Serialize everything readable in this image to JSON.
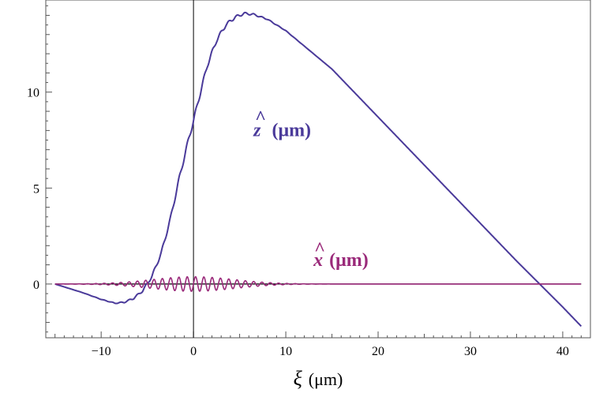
{
  "chart_data": {
    "type": "line",
    "title": "",
    "xlabel_symbol": "ξ",
    "xlabel_unit": "(μm)",
    "ylabel": "",
    "xlim": [
      -16,
      43
    ],
    "ylim": [
      -2.8,
      14.8
    ],
    "xticks": [
      -10,
      0,
      10,
      20,
      30,
      40
    ],
    "xtick_labels": [
      "−10",
      "0",
      "10",
      "20",
      "30",
      "40"
    ],
    "yticks": [
      0,
      5,
      10
    ],
    "ytick_labels": [
      "0",
      "5",
      "10"
    ],
    "grid": false,
    "colors": {
      "z": "#4a3a9a",
      "x": "#9a2a7a",
      "axis": "#000000"
    },
    "series": [
      {
        "name": "z (μm)",
        "label_text": "(μm)",
        "hat_symbol": "z",
        "x": [
          -15,
          -12,
          -10,
          -8.5,
          -7.5,
          -6.5,
          -5.5,
          -4.5,
          -3.5,
          -2.5,
          -1.5,
          -0.5,
          0,
          0.5,
          1.5,
          2.5,
          3.5,
          4.5,
          5.5,
          6.5,
          8,
          10,
          15,
          20,
          25,
          30,
          35,
          37.5,
          40,
          42
        ],
        "y": [
          0,
          -0.45,
          -0.8,
          -1.0,
          -0.95,
          -0.75,
          -0.35,
          0.4,
          1.6,
          3.4,
          5.6,
          7.6,
          8.5,
          9.5,
          11.4,
          12.7,
          13.5,
          13.9,
          14.1,
          14.05,
          13.8,
          13.2,
          11.2,
          8.7,
          6.2,
          3.7,
          1.2,
          0,
          -1.2,
          -2.2
        ]
      },
      {
        "name": "x (μm)",
        "label_text": "(μm)",
        "hat_symbol": "x",
        "description_envelope_center": 0,
        "x_range": [
          -15,
          42
        ],
        "peak_amplitude": 0.38,
        "oscillation_period": 0.9
      }
    ],
    "annotations": [
      {
        "series": "z",
        "text": "(μm)",
        "at": [
          6.5,
          7.7
        ]
      },
      {
        "series": "x",
        "text": "(μm)",
        "at": [
          13,
          0.95
        ]
      }
    ]
  }
}
